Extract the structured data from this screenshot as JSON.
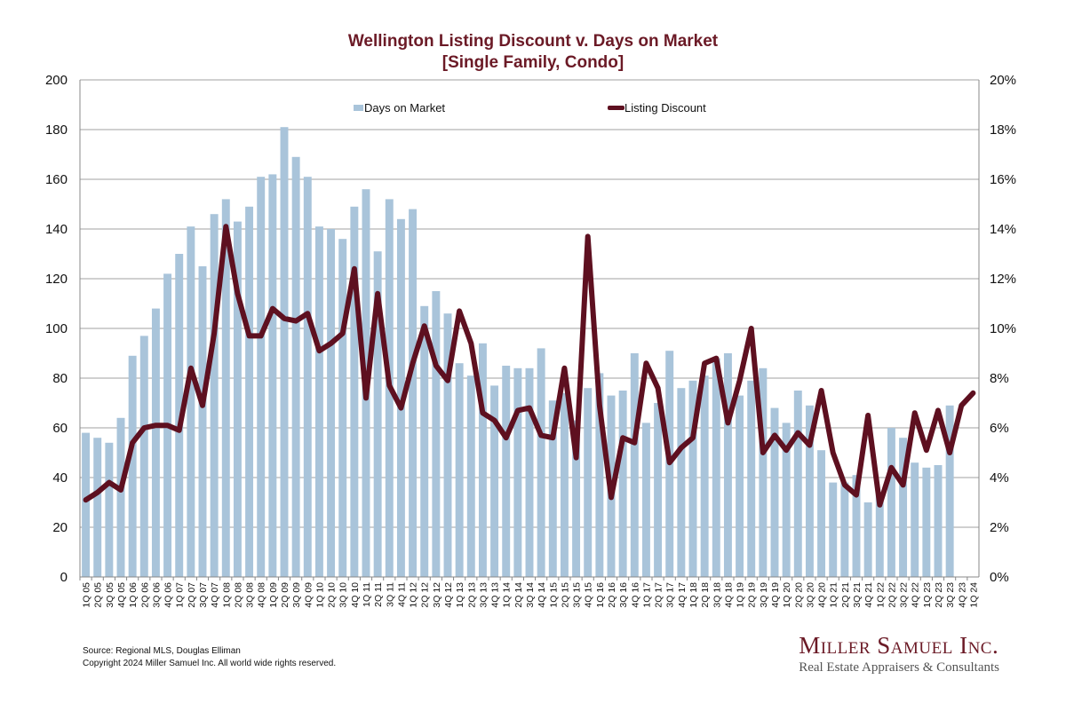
{
  "chart_data": {
    "type": "bar",
    "title": "Wellington Listing Discount v. Days on Market",
    "subtitle": "[Single Family, Condo]",
    "xlabel": "",
    "ylabel_left": "",
    "ylabel_right": "",
    "ylim_left": [
      0,
      200
    ],
    "ylim_right": [
      0,
      20
    ],
    "yticks_left": [
      "0",
      "20",
      "40",
      "60",
      "80",
      "100",
      "120",
      "140",
      "160",
      "180",
      "200"
    ],
    "yticks_right": [
      "0%",
      "2%",
      "4%",
      "6%",
      "8%",
      "10%",
      "12%",
      "14%",
      "16%",
      "18%",
      "20%"
    ],
    "grid": true,
    "legend_position": "top",
    "categories": [
      "1Q 05",
      "2Q 05",
      "3Q 05",
      "4Q 05",
      "1Q 06",
      "2Q 06",
      "3Q 06",
      "4Q 06",
      "1Q 07",
      "2Q 07",
      "3Q 07",
      "4Q 07",
      "1Q 08",
      "2Q 08",
      "3Q 08",
      "4Q 08",
      "1Q 09",
      "2Q 09",
      "3Q 09",
      "4Q 09",
      "1Q 10",
      "2Q 10",
      "3Q 10",
      "4Q 10",
      "1Q 11",
      "2Q 11",
      "3Q 11",
      "4Q 11",
      "1Q 12",
      "2Q 12",
      "3Q 12",
      "4Q 12",
      "1Q 13",
      "2Q 13",
      "3Q 13",
      "4Q 13",
      "1Q 14",
      "2Q 14",
      "3Q 14",
      "4Q 14",
      "1Q 15",
      "2Q 15",
      "3Q 15",
      "4Q 15",
      "1Q 16",
      "2Q 16",
      "3Q 16",
      "4Q 16",
      "1Q 17",
      "2Q 17",
      "3Q 17",
      "4Q 17",
      "1Q 18",
      "2Q 18",
      "3Q 18",
      "4Q 18",
      "1Q 19",
      "2Q 19",
      "3Q 19",
      "4Q 19",
      "1Q 20",
      "2Q 20",
      "3Q 20",
      "4Q 20",
      "1Q 21",
      "2Q 21",
      "3Q 21",
      "4Q 21",
      "1Q 22",
      "2Q 22",
      "3Q 22",
      "4Q 22",
      "1Q 23",
      "2Q 23",
      "3Q 23",
      "4Q 23",
      "1Q 24"
    ],
    "series": [
      {
        "name": "Days on Market",
        "type": "bar",
        "axis": "left",
        "color": "#a9c4da",
        "values": [
          58,
          56,
          54,
          64,
          89,
          97,
          108,
          122,
          130,
          141,
          125,
          146,
          152,
          143,
          149,
          161,
          162,
          181,
          169,
          161,
          141,
          140,
          136,
          149,
          156,
          131,
          152,
          144,
          148,
          109,
          115,
          106,
          86,
          81,
          94,
          77,
          85,
          84,
          84,
          92,
          71,
          74,
          63,
          76,
          82,
          73,
          75,
          90,
          62,
          70,
          91,
          76,
          79,
          81,
          88,
          90,
          73,
          79,
          84,
          68,
          62,
          75,
          69,
          51,
          38,
          38,
          41,
          30,
          33,
          60,
          56,
          46,
          44,
          45,
          69,
          0,
          0
        ]
      },
      {
        "name": "Listing Discount",
        "type": "line",
        "axis": "right",
        "unit": "%",
        "color": "#5e1020",
        "values": [
          3.1,
          3.4,
          3.8,
          3.5,
          5.4,
          6.0,
          6.1,
          6.1,
          5.9,
          8.4,
          6.9,
          9.8,
          14.1,
          11.4,
          9.7,
          9.7,
          10.8,
          10.4,
          10.3,
          10.6,
          9.1,
          9.4,
          9.8,
          12.4,
          7.2,
          11.4,
          7.7,
          6.8,
          8.6,
          10.1,
          8.5,
          7.9,
          10.7,
          9.4,
          6.6,
          6.3,
          5.6,
          6.7,
          6.8,
          5.7,
          5.6,
          8.4,
          4.8,
          13.7,
          6.9,
          3.2,
          5.6,
          5.4,
          8.6,
          7.6,
          4.6,
          5.2,
          5.6,
          8.6,
          8.8,
          6.2,
          7.9,
          10.0,
          5.0,
          5.7,
          5.1,
          5.8,
          5.3,
          7.5,
          5.0,
          3.7,
          3.3,
          6.5,
          2.9,
          4.4,
          3.7,
          6.6,
          5.1,
          6.7,
          5.0,
          6.9,
          7.4
        ]
      }
    ]
  },
  "footer": {
    "source": "Source: Regional MLS, Douglas Elliman",
    "copyright": "Copyright 2024 Miller Samuel Inc.  All world wide rights reserved."
  },
  "brand": {
    "name": "Miller Samuel Inc.",
    "tagline": "Real Estate Appraisers & Consultants"
  }
}
